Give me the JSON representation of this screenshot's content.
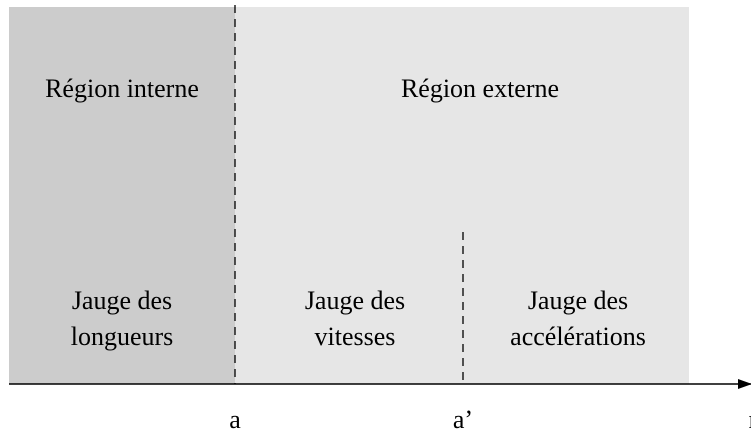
{
  "regions": {
    "inner": {
      "title": "Région interne",
      "gauge": [
        "Jauge des",
        "longueurs"
      ]
    },
    "outer": {
      "title": "Région externe",
      "gauges": [
        [
          "Jauge des",
          "vitesses"
        ],
        [
          "Jauge des",
          "accélérations"
        ]
      ]
    }
  },
  "axis": {
    "label": "r",
    "marks": [
      "a",
      "a’"
    ]
  }
}
